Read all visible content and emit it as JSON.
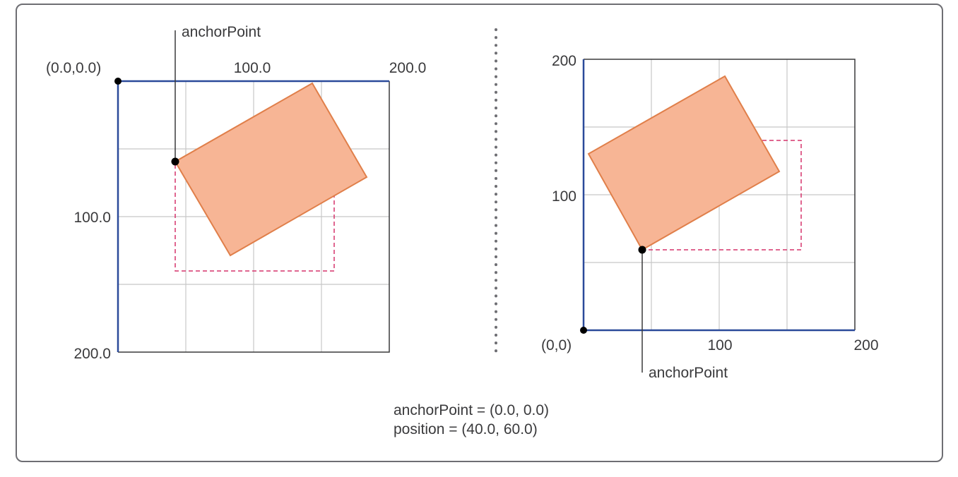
{
  "left_panel": {
    "origin_label": "(0.0,0.0)",
    "top_axis": {
      "tick_mid": "100.0",
      "tick_end": "200.0"
    },
    "side_axis": {
      "tick_mid": "100.0",
      "tick_end": "200.0"
    },
    "anchor_label": "anchorPoint"
  },
  "right_panel": {
    "origin_label": "(0,0)",
    "x_axis": {
      "tick_mid": "100",
      "tick_end": "200"
    },
    "y_axis": {
      "tick_mid": "100",
      "tick_end": "200"
    },
    "anchor_label": "anchorPoint"
  },
  "caption": {
    "line1": "anchorPoint = (0.0, 0.0)",
    "line2": "position = (40.0, 60.0)"
  },
  "colors": {
    "frame": "#6e6e73",
    "axis": "#2b4a9a",
    "grid": "#c8c8c8",
    "layer_fill": "#f7b595",
    "layer_stroke": "#e07f4a",
    "dashed": "#d6336c",
    "text": "#3a3a3c"
  }
}
